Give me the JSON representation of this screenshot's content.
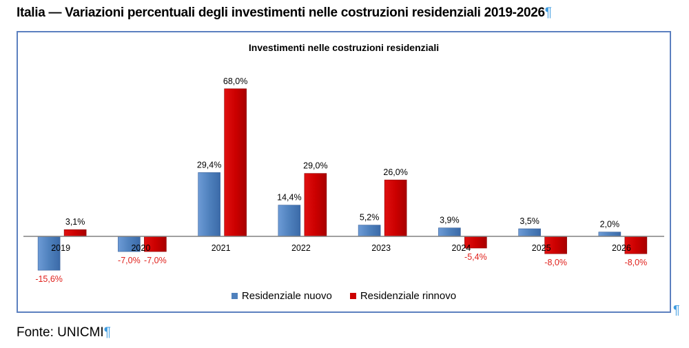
{
  "document": {
    "title": "Italia — Variazioni percentuali degli investimenti nelle costruzioni residenziali 2019-2026",
    "pilcrow": "¶",
    "source": "Fonte: UNICMI"
  },
  "chart_data": {
    "type": "bar",
    "title": "Investimenti nelle costruzioni residenziali",
    "xlabel": "",
    "ylabel": "",
    "categories": [
      "2019",
      "2020",
      "2021",
      "2022",
      "2023",
      "2024",
      "2025",
      "2026"
    ],
    "series": [
      {
        "name": "Residenziale nuovo",
        "color": "#4f81bd",
        "values": [
          -15.6,
          -7.0,
          29.4,
          14.4,
          5.2,
          3.9,
          3.5,
          2.0
        ],
        "labels": [
          "-15,6%",
          "-7,0%",
          "29,4%",
          "14,4%",
          "5,2%",
          "3,9%",
          "3,5%",
          "2,0%"
        ]
      },
      {
        "name": "Residenziale rinnovo",
        "color": "#cc0000",
        "values": [
          3.1,
          -7.0,
          68.0,
          29.0,
          26.0,
          -5.4,
          -8.0,
          -8.0
        ],
        "labels": [
          "3,1%",
          "-7,0%",
          "68,0%",
          "29,0%",
          "26,0%",
          "-5,4%",
          "-8,0%",
          "-8,0%"
        ]
      }
    ],
    "positive_label_color": "#000000",
    "negative_label_color": "#e0201b",
    "ylim": [
      -20,
      70
    ],
    "grid": false,
    "y_axis_visible": false,
    "legend_position": "bottom"
  }
}
